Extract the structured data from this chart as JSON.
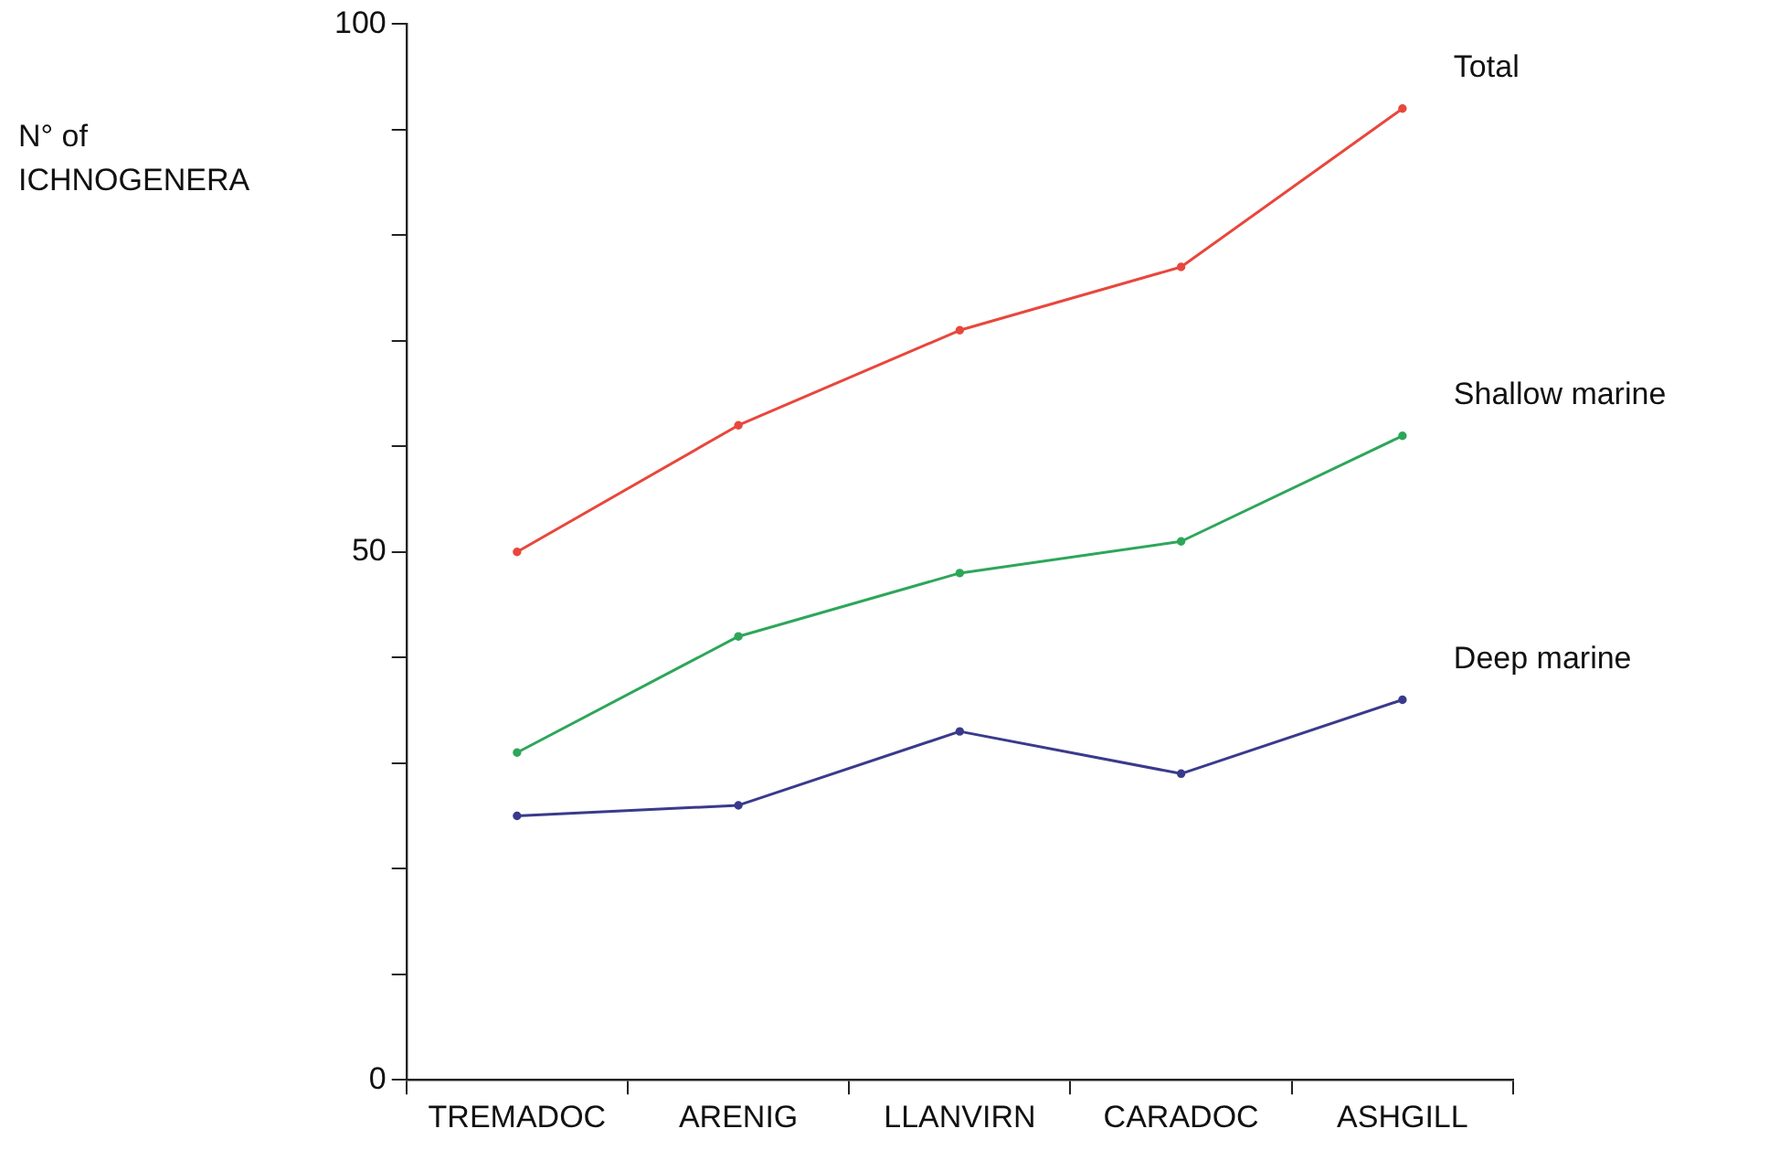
{
  "chart_data": {
    "type": "line",
    "ylabel": "N° of ICHNOGENERA",
    "categories": [
      "TREMADOC",
      "ARENIG",
      "LLANVIRN",
      "CARADOC",
      "ASHGILL"
    ],
    "series": [
      {
        "name": "Total",
        "color": "#e8473c",
        "values": [
          50,
          62,
          71,
          77,
          92
        ]
      },
      {
        "name": "Shallow marine",
        "color": "#2ea65a",
        "values": [
          31,
          42,
          48,
          51,
          61
        ]
      },
      {
        "name": "Deep marine",
        "color": "#3a3a8c",
        "values": [
          25,
          26,
          33,
          29,
          36
        ]
      }
    ],
    "ylim": [
      0,
      100
    ],
    "yticks": [
      0,
      {
        "value": 10,
        "label": null
      },
      {
        "value": 20,
        "label": null
      },
      {
        "value": 30,
        "label": null
      },
      {
        "value": 40,
        "label": null
      },
      50,
      {
        "value": 60,
        "label": null
      },
      {
        "value": 70,
        "label": null
      },
      {
        "value": 80,
        "label": null
      },
      {
        "value": 90,
        "label": null
      },
      100
    ],
    "grid": false,
    "legend": false,
    "marker": "circle",
    "line_style": "solid"
  }
}
